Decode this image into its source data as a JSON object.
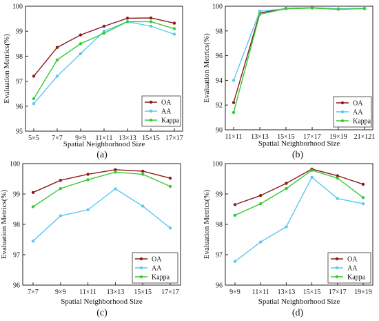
{
  "chart_data": [
    {
      "type": "line",
      "panel_label": "(a)",
      "xlabel": "Spatial Neighborhood Size",
      "ylabel": "Evaluation Metrics(%)",
      "categories": [
        "5×5",
        "7×7",
        "9×9",
        "11×11",
        "13×13",
        "15×15",
        "17×17"
      ],
      "ylim": [
        95,
        100
      ],
      "yticks": [
        95,
        96,
        97,
        98,
        99,
        100
      ],
      "legend_position": "bottom-right",
      "series": [
        {
          "name": "OA",
          "color": "#8b1a1a",
          "values": [
            97.2,
            98.35,
            98.85,
            99.2,
            99.52,
            99.53,
            99.32
          ]
        },
        {
          "name": "AA",
          "color": "#5bc8f0",
          "values": [
            96.1,
            97.2,
            98.1,
            99.0,
            99.38,
            99.2,
            98.88
          ]
        },
        {
          "name": "Kappa",
          "color": "#33cc33",
          "values": [
            96.3,
            97.85,
            98.5,
            98.92,
            99.38,
            99.38,
            99.1
          ]
        }
      ]
    },
    {
      "type": "line",
      "panel_label": "(b)",
      "xlabel": "Spatial Neighborhood Size",
      "ylabel": "Evaluation Metrics(%)",
      "categories": [
        "11×11",
        "13×13",
        "15×15",
        "17×17",
        "19×19",
        "21×121"
      ],
      "ylim": [
        90,
        100
      ],
      "yticks": [
        90,
        92,
        94,
        96,
        98,
        100
      ],
      "legend_position": "bottom-right",
      "series": [
        {
          "name": "OA",
          "color": "#8b1a1a",
          "values": [
            92.2,
            99.45,
            99.82,
            99.87,
            99.78,
            99.82
          ]
        },
        {
          "name": "AA",
          "color": "#5bc8f0",
          "values": [
            94.0,
            99.6,
            99.8,
            99.85,
            99.78,
            99.82
          ]
        },
        {
          "name": "Kappa",
          "color": "#33cc33",
          "values": [
            91.4,
            99.35,
            99.8,
            99.85,
            99.75,
            99.8
          ]
        }
      ]
    },
    {
      "type": "line",
      "panel_label": "(c)",
      "xlabel": "Spatial Neighborhood Size",
      "ylabel": "Evaluation Metrics(%)",
      "categories": [
        "7×7",
        "9×9",
        "11×11",
        "13×13",
        "15×15",
        "17×17"
      ],
      "ylim": [
        96,
        100
      ],
      "yticks": [
        96,
        97,
        98,
        99,
        100
      ],
      "legend_position": "bottom-right",
      "series": [
        {
          "name": "OA",
          "color": "#8b1a1a",
          "values": [
            99.05,
            99.45,
            99.65,
            99.8,
            99.75,
            99.52
          ]
        },
        {
          "name": "AA",
          "color": "#5bc8f0",
          "values": [
            97.45,
            98.28,
            98.48,
            99.17,
            98.6,
            97.88
          ]
        },
        {
          "name": "Kappa",
          "color": "#33cc33",
          "values": [
            98.58,
            99.18,
            99.47,
            99.72,
            99.65,
            99.25
          ]
        }
      ]
    },
    {
      "type": "line",
      "panel_label": "(d)",
      "xlabel": "Spatial Neighborhood Size",
      "ylabel": "Evaluation Metrics(%)",
      "categories": [
        "9×9",
        "11×11",
        "13×13",
        "15×15",
        "17×17",
        "19×19"
      ],
      "ylim": [
        96,
        100
      ],
      "yticks": [
        96,
        97,
        98,
        99,
        100
      ],
      "legend_position": "bottom-right",
      "series": [
        {
          "name": "OA",
          "color": "#8b1a1a",
          "values": [
            98.65,
            98.95,
            99.35,
            99.82,
            99.6,
            99.32
          ]
        },
        {
          "name": "AA",
          "color": "#5bc8f0",
          "values": [
            96.78,
            97.42,
            97.92,
            99.55,
            98.85,
            98.68
          ]
        },
        {
          "name": "Kappa",
          "color": "#33cc33",
          "values": [
            98.3,
            98.68,
            99.18,
            99.78,
            99.52,
            98.88
          ]
        }
      ]
    }
  ]
}
